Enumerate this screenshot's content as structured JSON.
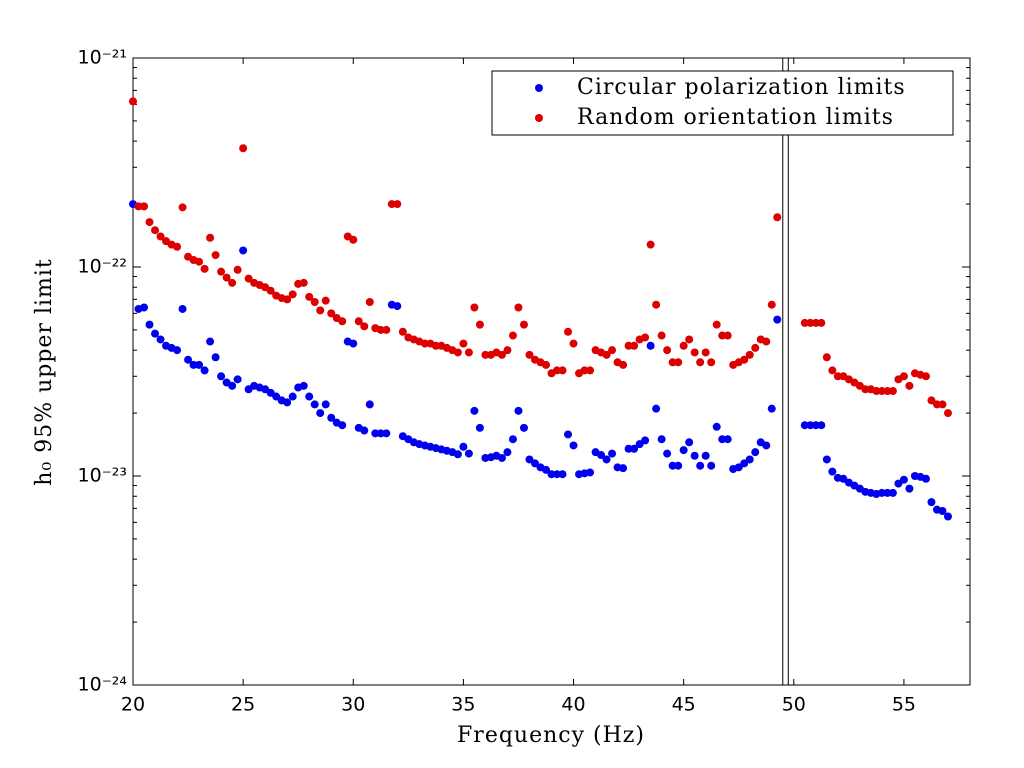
{
  "chart_data": {
    "type": "scatter",
    "xlabel": "Frequency (Hz)",
    "ylabel": "h₀ 95% upper limit",
    "log_y": true,
    "legend": "upper right",
    "xlim": [
      20,
      58
    ],
    "xticks": [
      20,
      25,
      30,
      35,
      40,
      45,
      50,
      55
    ],
    "ylim": [
      1e-24,
      1e-21
    ],
    "yticks": [
      {
        "value": 1e-24,
        "label": "10⁻²⁴"
      },
      {
        "value": 1e-23,
        "label": "10⁻²³"
      },
      {
        "value": 1e-22,
        "label": "10⁻²²"
      },
      {
        "value": 1e-21,
        "label": "10⁻²¹"
      }
    ],
    "vlines": [
      49.5,
      49.75
    ],
    "x": [
      20,
      20.25,
      20.5,
      20.75,
      21,
      21.25,
      21.5,
      21.75,
      22,
      22.25,
      22.5,
      22.75,
      23,
      23.25,
      23.5,
      23.75,
      24,
      24.25,
      24.5,
      24.75,
      25,
      25.25,
      25.5,
      25.75,
      26,
      26.25,
      26.5,
      26.75,
      27,
      27.25,
      27.5,
      27.75,
      28,
      28.25,
      28.5,
      28.75,
      29,
      29.25,
      29.5,
      29.75,
      30,
      30.25,
      30.5,
      30.75,
      31,
      31.25,
      31.5,
      31.75,
      32,
      32.25,
      32.5,
      32.75,
      33,
      33.25,
      33.5,
      33.75,
      34,
      34.25,
      34.5,
      34.75,
      35,
      35.25,
      35.5,
      35.75,
      36,
      36.25,
      36.5,
      36.75,
      37,
      37.25,
      37.5,
      37.75,
      38,
      38.25,
      38.5,
      38.75,
      39,
      39.25,
      39.5,
      39.75,
      40,
      40.25,
      40.5,
      40.75,
      41,
      41.25,
      41.5,
      41.75,
      42,
      42.25,
      42.5,
      42.75,
      43,
      43.25,
      43.5,
      43.75,
      44,
      44.25,
      44.5,
      44.75,
      45,
      45.25,
      45.5,
      45.75,
      46,
      46.25,
      46.5,
      46.75,
      47,
      47.25,
      47.5,
      47.75,
      48,
      48.25,
      48.5,
      48.75,
      49,
      49.25,
      50.5,
      50.75,
      51,
      51.25,
      51.5,
      51.75,
      52,
      52.25,
      52.5,
      52.75,
      53,
      53.25,
      53.5,
      53.75,
      54,
      54.25,
      54.5,
      54.75,
      55,
      55.25,
      55.5,
      55.75,
      56,
      56.25,
      56.5,
      56.75,
      57
    ],
    "series": [
      {
        "name": "Circular polarization limits",
        "color": "#0000ee",
        "values": [
          2e-22,
          6.3e-23,
          6.4e-23,
          5.3e-23,
          4.8e-23,
          4.5e-23,
          4.2e-23,
          4.1e-23,
          4e-23,
          6.3e-23,
          3.6e-23,
          3.4e-23,
          3.4e-23,
          3.2e-23,
          4.4e-23,
          3.7e-23,
          3e-23,
          2.8e-23,
          2.7e-23,
          2.9e-23,
          1.2e-22,
          2.6e-23,
          2.7e-23,
          2.65e-23,
          2.6e-23,
          2.5e-23,
          2.4e-23,
          2.3e-23,
          2.25e-23,
          2.4e-23,
          2.65e-23,
          2.7e-23,
          2.4e-23,
          2.2e-23,
          2e-23,
          2.2e-23,
          1.9e-23,
          1.8e-23,
          1.75e-23,
          4.4e-23,
          4.3e-23,
          1.7e-23,
          1.65e-23,
          2.2e-23,
          1.6e-23,
          1.6e-23,
          1.6e-23,
          6.6e-23,
          6.5e-23,
          1.55e-23,
          1.5e-23,
          1.45e-23,
          1.42e-23,
          1.4e-23,
          1.38e-23,
          1.36e-23,
          1.34e-23,
          1.32e-23,
          1.3e-23,
          1.27e-23,
          1.38e-23,
          1.28e-23,
          2.05e-23,
          1.7e-23,
          1.22e-23,
          1.23e-23,
          1.25e-23,
          1.22e-23,
          1.3e-23,
          1.5e-23,
          2.05e-23,
          1.7e-23,
          1.2e-23,
          1.15e-23,
          1.1e-23,
          1.07e-23,
          1.02e-23,
          1.02e-23,
          1.02e-23,
          1.58e-23,
          1.4e-23,
          1.02e-23,
          1.03e-23,
          1.04e-23,
          1.3e-23,
          1.26e-23,
          1.2e-23,
          1.28e-23,
          1.1e-23,
          1.09e-23,
          1.35e-23,
          1.35e-23,
          1.42e-23,
          1.48e-23,
          4.2e-23,
          2.1e-23,
          1.5e-23,
          1.28e-23,
          1.12e-23,
          1.12e-23,
          1.33e-23,
          1.45e-23,
          1.25e-23,
          1.12e-23,
          1.25e-23,
          1.12e-23,
          1.72e-23,
          1.5e-23,
          1.5e-23,
          1.08e-23,
          1.1e-23,
          1.15e-23,
          1.2e-23,
          1.3e-23,
          1.45e-23,
          1.4e-23,
          2.1e-23,
          5.6e-23,
          1.75e-23,
          1.75e-23,
          1.75e-23,
          1.75e-23,
          1.2e-23,
          1.05e-23,
          9.8e-24,
          9.7e-24,
          9.3e-24,
          9e-24,
          8.7e-24,
          8.4e-24,
          8.3e-24,
          8.2e-24,
          8.3e-24,
          8.3e-24,
          8.3e-24,
          9.2e-24,
          9.6e-24,
          8.7e-24,
          1e-23,
          9.9e-24,
          9.7e-24,
          7.5e-24,
          6.9e-24,
          6.8e-24,
          6.4e-24
        ]
      },
      {
        "name": "Random orientation limits",
        "color": "#dd0000",
        "values": [
          6.2e-22,
          1.95e-22,
          1.95e-22,
          1.64e-22,
          1.5e-22,
          1.4e-22,
          1.33e-22,
          1.28e-22,
          1.25e-22,
          1.93e-22,
          1.12e-22,
          1.08e-22,
          1.06e-22,
          9.8e-23,
          1.38e-22,
          1.14e-22,
          9.5e-23,
          8.9e-23,
          8.4e-23,
          9.7e-23,
          3.7e-22,
          8.8e-23,
          8.4e-23,
          8.2e-23,
          8e-23,
          7.7e-23,
          7.3e-23,
          7.1e-23,
          7e-23,
          7.4e-23,
          8.3e-23,
          8.4e-23,
          7.2e-23,
          6.8e-23,
          6.2e-23,
          6.9e-23,
          6e-23,
          5.7e-23,
          5.5e-23,
          1.4e-22,
          1.35e-22,
          5.5e-23,
          5.2e-23,
          6.8e-23,
          5.1e-23,
          5e-23,
          5e-23,
          2e-22,
          2e-22,
          4.9e-23,
          4.6e-23,
          4.5e-23,
          4.4e-23,
          4.3e-23,
          4.3e-23,
          4.2e-23,
          4.2e-23,
          4.1e-23,
          4e-23,
          3.9e-23,
          4.3e-23,
          3.9e-23,
          6.4e-23,
          5.3e-23,
          3.8e-23,
          3.8e-23,
          3.9e-23,
          3.8e-23,
          4e-23,
          4.7e-23,
          6.4e-23,
          5.3e-23,
          3.8e-23,
          3.6e-23,
          3.5e-23,
          3.4e-23,
          3.1e-23,
          3.2e-23,
          3.2e-23,
          4.9e-23,
          4.3e-23,
          3.1e-23,
          3.2e-23,
          3.2e-23,
          4e-23,
          3.9e-23,
          3.8e-23,
          4e-23,
          3.5e-23,
          3.4e-23,
          4.2e-23,
          4.2e-23,
          4.5e-23,
          4.6e-23,
          1.28e-22,
          6.6e-23,
          4.7e-23,
          4e-23,
          3.5e-23,
          3.5e-23,
          4.2e-23,
          4.5e-23,
          3.9e-23,
          3.5e-23,
          3.9e-23,
          3.5e-23,
          5.3e-23,
          4.7e-23,
          4.7e-23,
          3.4e-23,
          3.5e-23,
          3.6e-23,
          3.8e-23,
          4.1e-23,
          4.5e-23,
          4.4e-23,
          6.6e-23,
          1.73e-22,
          5.4e-23,
          5.4e-23,
          5.4e-23,
          5.4e-23,
          3.7e-23,
          3.2e-23,
          3e-23,
          3e-23,
          2.9e-23,
          2.8e-23,
          2.7e-23,
          2.6e-23,
          2.6e-23,
          2.55e-23,
          2.55e-23,
          2.55e-23,
          2.55e-23,
          2.9e-23,
          3e-23,
          2.7e-23,
          3.1e-23,
          3.05e-23,
          3e-23,
          2.3e-23,
          2.2e-23,
          2.2e-23,
          2e-23
        ]
      }
    ]
  }
}
